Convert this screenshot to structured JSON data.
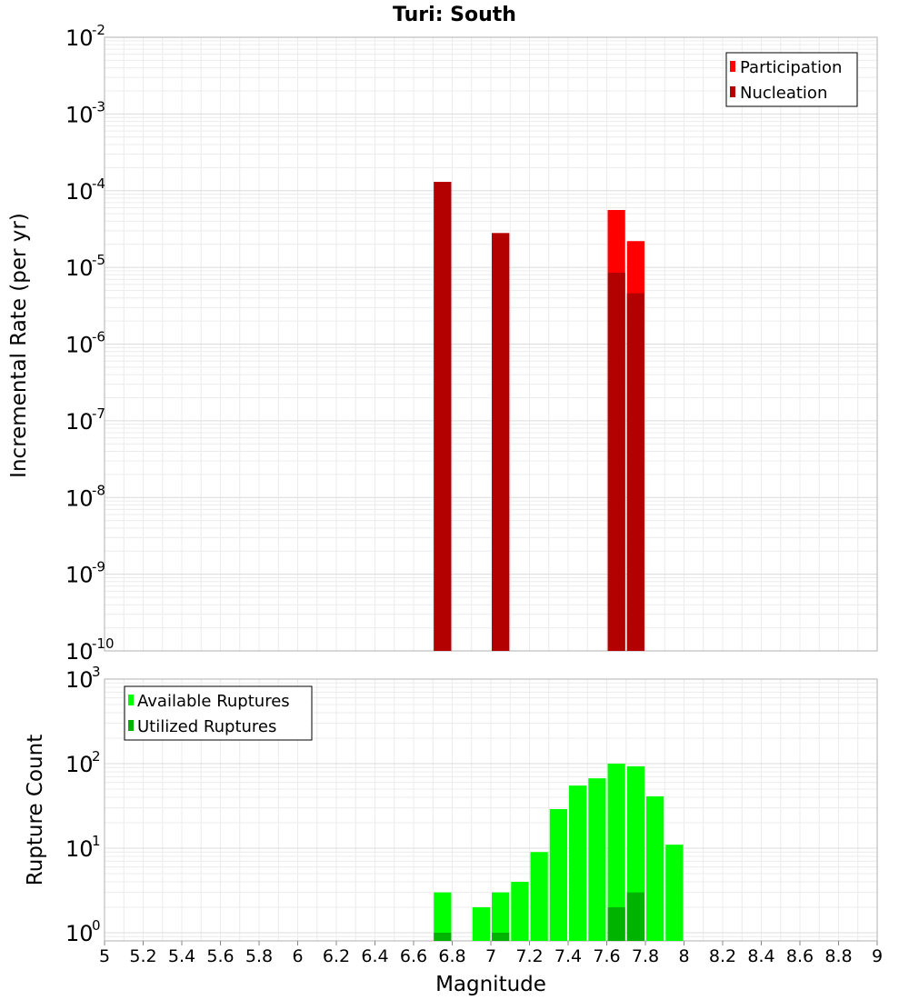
{
  "chart_data": [
    {
      "type": "bar",
      "title": "Turi: South",
      "xlabel": "",
      "ylabel": "Incremental Rate (per yr)",
      "yscale": "log",
      "ylim": [
        1e-10,
        0.01
      ],
      "xlim": [
        5,
        9
      ],
      "ytick_labels": [
        {
          "base": "10",
          "exp": "-2"
        },
        {
          "base": "10",
          "exp": "-3"
        },
        {
          "base": "10",
          "exp": "-4"
        },
        {
          "base": "10",
          "exp": "-5"
        },
        {
          "base": "10",
          "exp": "-6"
        },
        {
          "base": "10",
          "exp": "-7"
        },
        {
          "base": "10",
          "exp": "-8"
        },
        {
          "base": "10",
          "exp": "-9"
        },
        {
          "base": "10",
          "exp": "-10"
        }
      ],
      "legend_position": "top-right",
      "grid": true,
      "series": [
        {
          "name": "Participation",
          "color": "#ff0000",
          "x": [
            6.75,
            7.05,
            7.65,
            7.75
          ],
          "values": [
            0.00013,
            2.8e-05,
            5.6e-05,
            2.2e-05
          ]
        },
        {
          "name": "Nucleation",
          "color": "#b30000",
          "x": [
            6.75,
            7.05,
            7.65,
            7.75
          ],
          "values": [
            0.00013,
            2.8e-05,
            8.5e-06,
            4.6e-06
          ]
        }
      ]
    },
    {
      "type": "bar",
      "xlabel": "Magnitude",
      "ylabel": "Rupture Count",
      "yscale": "log",
      "ylim": [
        0.8,
        1000
      ],
      "xlim": [
        5,
        9
      ],
      "ytick_labels": [
        {
          "base": "10",
          "exp": "3"
        },
        {
          "base": "10",
          "exp": "2"
        },
        {
          "base": "10",
          "exp": "1"
        },
        {
          "base": "10",
          "exp": "0"
        }
      ],
      "xtick_labels": [
        "5",
        "5.2",
        "5.4",
        "5.6",
        "5.8",
        "6",
        "6.2",
        "6.4",
        "6.6",
        "6.8",
        "7",
        "7.2",
        "7.4",
        "7.6",
        "7.8",
        "8",
        "8.2",
        "8.4",
        "8.6",
        "8.8",
        "9"
      ],
      "legend_position": "top-left",
      "grid": true,
      "series": [
        {
          "name": "Available Ruptures",
          "color": "#00ff00",
          "x": [
            6.75,
            6.95,
            7.05,
            7.15,
            7.25,
            7.35,
            7.45,
            7.55,
            7.65,
            7.75,
            7.85,
            7.95
          ],
          "values": [
            3,
            2,
            3,
            4,
            9,
            29,
            55,
            67,
            100,
            93,
            41,
            11
          ]
        },
        {
          "name": "Utilized Ruptures",
          "color": "#00b300",
          "x": [
            6.75,
            7.05,
            7.65,
            7.75
          ],
          "values": [
            1,
            1,
            2,
            3
          ]
        }
      ]
    }
  ]
}
